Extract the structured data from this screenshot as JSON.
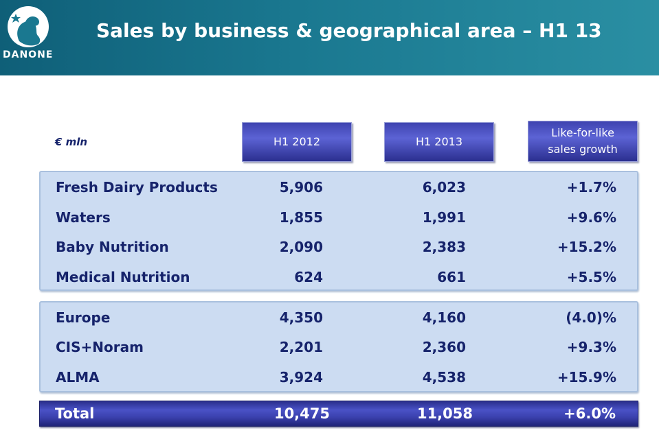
{
  "header": {
    "brand": "DANONE",
    "title": "Sales by business & geographical area – H1 13"
  },
  "table": {
    "unit": "€ mln",
    "columns": {
      "h2012": "H1 2012",
      "h2013": "H1 2013",
      "lfl_line1": "Like-for-like",
      "lfl_line2": "sales growth"
    },
    "business": [
      {
        "label": "Fresh Dairy Products",
        "h2012": "5,906",
        "h2013": "6,023",
        "growth": "+1.7%"
      },
      {
        "label": "Waters",
        "h2012": "1,855",
        "h2013": "1,991",
        "growth": "+9.6%"
      },
      {
        "label": "Baby Nutrition",
        "h2012": "2,090",
        "h2013": "2,383",
        "growth": "+15.2%"
      },
      {
        "label": "Medical Nutrition",
        "h2012": "624",
        "h2013": "661",
        "growth": "+5.5%"
      }
    ],
    "geography": [
      {
        "label": "Europe",
        "h2012": "4,350",
        "h2013": "4,160",
        "growth": "(4.0)%"
      },
      {
        "label": "CIS+Noram",
        "h2012": "2,201",
        "h2013": "2,360",
        "growth": "+9.3%"
      },
      {
        "label": "ALMA",
        "h2012": "3,924",
        "h2013": "4,538",
        "growth": "+15.9%"
      }
    ],
    "total": {
      "label": "Total",
      "h2012": "10,475",
      "h2013": "11,058",
      "growth": "+6.0%"
    }
  },
  "colors": {
    "header_teal": "#1a7890",
    "text_navy": "#16236b",
    "panel_blue": "#ccdcf2",
    "header_box_blue": "#3e43b0"
  }
}
